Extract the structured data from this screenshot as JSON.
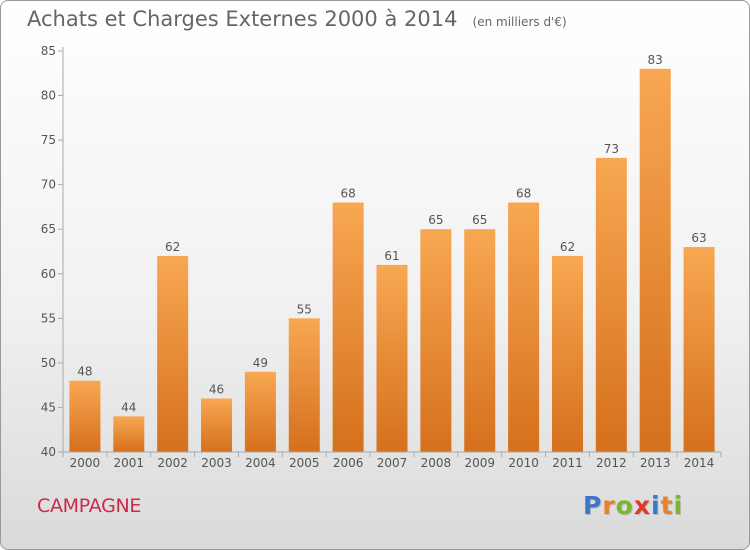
{
  "chart_data": {
    "type": "bar",
    "title": "Achats et Charges Externes 2000 à 2014",
    "subtitle": "(en milliers d'€)",
    "categories": [
      "2000",
      "2001",
      "2002",
      "2003",
      "2004",
      "2005",
      "2006",
      "2007",
      "2008",
      "2009",
      "2010",
      "2011",
      "2012",
      "2013",
      "2014"
    ],
    "values": [
      48,
      44,
      62,
      46,
      49,
      55,
      68,
      61,
      65,
      65,
      68,
      62,
      73,
      83,
      63
    ],
    "ylim": [
      40,
      85
    ],
    "yticks": [
      40,
      45,
      50,
      55,
      60,
      65,
      70,
      75,
      80,
      85
    ],
    "grid": false,
    "bar_color": "#f0882e"
  },
  "footer": {
    "commune": "CAMPAGNE",
    "logo": {
      "text": "Proxiti",
      "letters": [
        {
          "ch": "P",
          "color": "#3a78c9"
        },
        {
          "ch": "r",
          "color": "#e8812a"
        },
        {
          "ch": "o",
          "color": "#7ab829"
        },
        {
          "ch": "x",
          "color": "#e03a2a"
        },
        {
          "ch": "i",
          "color": "#3a78c9"
        },
        {
          "ch": "t",
          "color": "#e8812a"
        },
        {
          "ch": "i",
          "color": "#7ab829"
        }
      ]
    }
  }
}
